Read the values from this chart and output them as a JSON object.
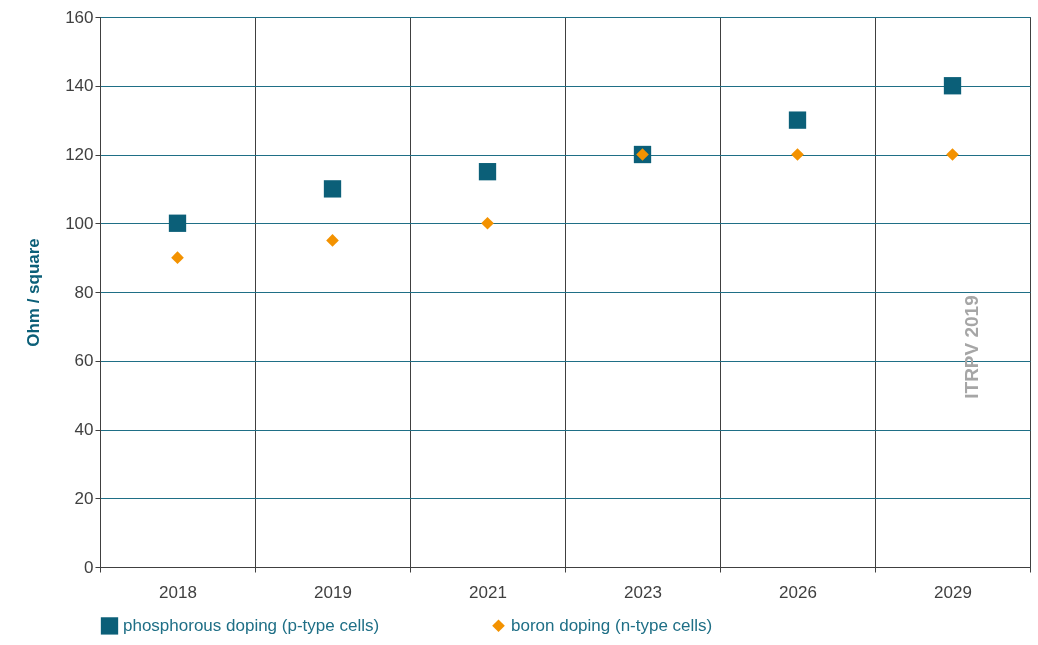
{
  "chart_data": {
    "type": "scatter",
    "ylabel": "Ohm / square",
    "categories": [
      "2018",
      "2019",
      "2021",
      "2023",
      "2026",
      "2029"
    ],
    "series": [
      {
        "name": "phosphorous doping (p-type cells)",
        "color": "#0b5f78",
        "marker": "square",
        "values": [
          100,
          110,
          115,
          120,
          130,
          140
        ]
      },
      {
        "name": "boron doping (n-type cells)",
        "color": "#f39200",
        "marker": "diamond",
        "values": [
          90,
          95,
          100,
          120,
          120,
          120
        ]
      }
    ],
    "ylim": [
      0,
      160
    ],
    "yticks": [
      0,
      20,
      40,
      60,
      80,
      100,
      120,
      140,
      160
    ],
    "grid": true,
    "legend": "bottom",
    "annotations": [
      "ITRPV 2019"
    ]
  }
}
